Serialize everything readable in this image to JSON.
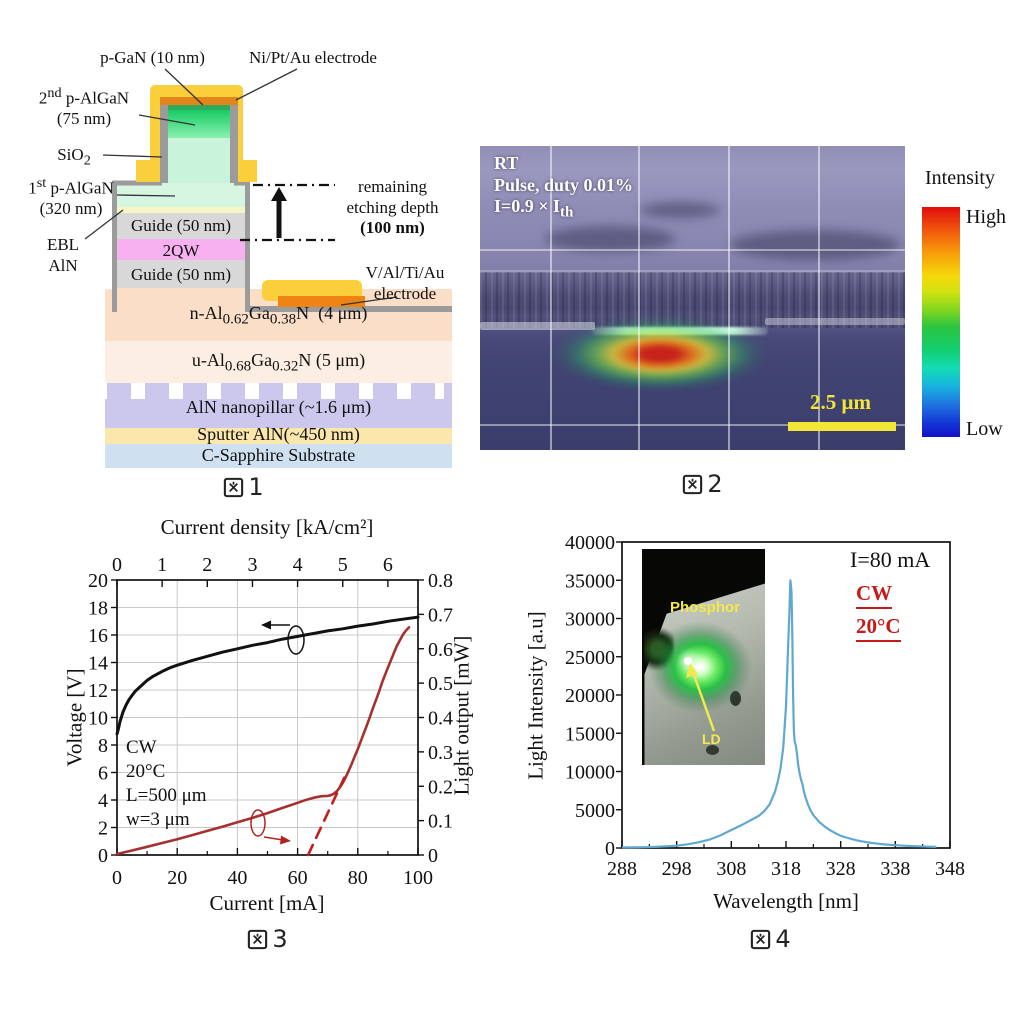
{
  "page": {
    "background": "#ffffff"
  },
  "figures": {
    "fig1": {
      "caption": "図1",
      "labels": {
        "p_gan": "p-GaN (10 nm)",
        "electrode_top": "Ni/Pt/Au electrode",
        "p_algan_2nd": "2<sup>nd</sup> p-AlGaN<br>(75 nm)",
        "sio2": "SiO<sub>2</sub>",
        "p_algan_1st": "1<sup>st</sup> p-AlGaN<br>(320 nm)",
        "ebl": "EBL<br>AlN",
        "guide_top": "Guide (50 nm)",
        "qw": "2QW",
        "guide_bottom": "Guide (50 nm)",
        "remaining": "remaining<br>etching depth<br><b>(100 nm)</b>",
        "electrode_side": "V/Al/Ti/Au<br>electrode",
        "n_algan": "n-Al<sub>0.62</sub>Ga<sub>0.38</sub>N&nbsp; (4 μm)",
        "u_algan": "u-Al<sub>0.68</sub>Ga<sub>0.32</sub>N (5 μm)",
        "nanopillar": "AlN nanopillar (~1.6 μm)",
        "sputter": "Sputter AlN(~450 nm)",
        "substrate": "C-Sapphire Substrate"
      },
      "colors": {
        "electrode_au": "#fbce3c",
        "electrode_contact": "#e2851b",
        "p_algan_2nd_top": "#17cb63",
        "p_algan_2nd_bottom": "#8af0b0",
        "ridge_mint": "#c9f3da",
        "sio2_gray": "#9b9b9b",
        "ebl": "#f5f6c8",
        "guide": "#d8d8d8",
        "qw": "#f7b1f1",
        "n_algan": "#fadec8",
        "u_algan": "#fceee2",
        "nanopillar": "#cbc7ed",
        "sputter_aln": "#fbe6ab",
        "substrate": "#cfe0f1"
      }
    },
    "fig2": {
      "caption": "図2",
      "annotations": {
        "line1": "RT",
        "line2": "Pulse, duty 0.01%",
        "line3": "I=0.9 × I<sub>th</sub>"
      },
      "scale_bar": "2.5 μm",
      "colorbar": {
        "title": "Intensity",
        "high": "High",
        "low": "Low",
        "colors": [
          "#dd0f10",
          "#f59b0c",
          "#f3d90b",
          "#3fc832",
          "#12d8c8",
          "#1563d8",
          "#1018c8"
        ]
      }
    },
    "fig3": {
      "caption": "図3"
    },
    "fig4": {
      "caption": "図4",
      "inset": {
        "phosphor": "Phosphor",
        "ld": "LD"
      }
    }
  },
  "chart_data": [
    {
      "id": "fig3-iv-li-curves",
      "type": "line",
      "caption": "図3",
      "x_axis": {
        "label": "Current [mA]",
        "range": [
          0,
          100
        ],
        "ticks": [
          0,
          20,
          40,
          60,
          80,
          100
        ]
      },
      "x2_axis": {
        "label": "Current density [kA/cm²]",
        "range": [
          0,
          6.667
        ],
        "ticks": [
          0,
          1,
          2,
          3,
          4,
          5,
          6
        ]
      },
      "y_left": {
        "label": "Voltage [V]",
        "range": [
          0,
          20
        ],
        "ticks": [
          0,
          2,
          4,
          6,
          8,
          10,
          12,
          14,
          16,
          18,
          20
        ]
      },
      "y_right": {
        "label": "Light output [mW]",
        "range": [
          0,
          0.8
        ],
        "ticks": [
          "0",
          "0.1",
          "0.2",
          "0.3",
          "0.4",
          "0.5",
          "0.6",
          "0.7",
          "0.8"
        ]
      },
      "annotations": [
        "CW",
        "20°C",
        "L=500 μm",
        "w=3 μm"
      ],
      "grid": true,
      "series": [
        {
          "name": "voltage-vs-current",
          "axis": "left",
          "color": "#111111",
          "width": 3,
          "points": [
            [
              0,
              8.8
            ],
            [
              0.5,
              9.2
            ],
            [
              1,
              9.7
            ],
            [
              2,
              10.4
            ],
            [
              3,
              10.9
            ],
            [
              4,
              11.3
            ],
            [
              5,
              11.6
            ],
            [
              6,
              11.9
            ],
            [
              8,
              12.3
            ],
            [
              10,
              12.7
            ],
            [
              12,
              13.0
            ],
            [
              15,
              13.35
            ],
            [
              18,
              13.65
            ],
            [
              20,
              13.8
            ],
            [
              25,
              14.15
            ],
            [
              30,
              14.45
            ],
            [
              35,
              14.75
            ],
            [
              40,
              15.0
            ],
            [
              45,
              15.25
            ],
            [
              50,
              15.45
            ],
            [
              55,
              15.7
            ],
            [
              60,
              15.9
            ],
            [
              65,
              16.1
            ],
            [
              70,
              16.3
            ],
            [
              75,
              16.45
            ],
            [
              80,
              16.65
            ],
            [
              85,
              16.8
            ],
            [
              90,
              17.0
            ],
            [
              95,
              17.15
            ],
            [
              100,
              17.3
            ]
          ]
        },
        {
          "name": "light-output-vs-current",
          "axis": "right",
          "color": "#a63030",
          "width": 2.6,
          "points": [
            [
              0,
              0.003
            ],
            [
              5,
              0.013
            ],
            [
              10,
              0.024
            ],
            [
              15,
              0.035
            ],
            [
              20,
              0.046
            ],
            [
              25,
              0.058
            ],
            [
              30,
              0.07
            ],
            [
              35,
              0.082
            ],
            [
              40,
              0.095
            ],
            [
              45,
              0.108
            ],
            [
              50,
              0.122
            ],
            [
              55,
              0.137
            ],
            [
              60,
              0.152
            ],
            [
              63,
              0.161
            ],
            [
              66,
              0.168
            ],
            [
              68,
              0.171
            ],
            [
              70,
              0.172
            ],
            [
              71,
              0.174
            ],
            [
              72,
              0.178
            ],
            [
              73,
              0.185
            ],
            [
              74,
              0.196
            ],
            [
              75,
              0.21
            ],
            [
              76,
              0.227
            ],
            [
              77,
              0.246
            ],
            [
              78,
              0.266
            ],
            [
              79,
              0.287
            ],
            [
              80,
              0.308
            ],
            [
              81,
              0.331
            ],
            [
              82,
              0.354
            ],
            [
              83,
              0.377
            ],
            [
              84,
              0.401
            ],
            [
              85,
              0.427
            ],
            [
              86,
              0.45
            ],
            [
              87,
              0.474
            ],
            [
              88,
              0.5
            ],
            [
              89,
              0.523
            ],
            [
              90,
              0.545
            ],
            [
              91,
              0.566
            ],
            [
              92,
              0.588
            ],
            [
              93,
              0.609
            ],
            [
              94,
              0.625
            ],
            [
              95,
              0.641
            ],
            [
              96,
              0.653
            ],
            [
              97,
              0.662
            ]
          ]
        },
        {
          "name": "threshold-extrapolation",
          "axis": "right",
          "color": "#c41b1b",
          "width": 2.6,
          "dashed": true,
          "points": [
            [
              63.5,
              0
            ],
            [
              75.5,
              0.225
            ]
          ]
        }
      ]
    },
    {
      "id": "fig4-lasing-spectrum",
      "type": "line",
      "caption": "図4",
      "x_axis": {
        "label": "Wavelength  [nm]",
        "range": [
          288,
          348
        ],
        "ticks": [
          288,
          298,
          308,
          318,
          328,
          338,
          348
        ]
      },
      "y_axis": {
        "label": "Light Intensity  [a.u]",
        "range": [
          0,
          40000
        ],
        "ticks": [
          0,
          5000,
          10000,
          15000,
          20000,
          25000,
          30000,
          35000,
          40000
        ]
      },
      "annotations": [
        "I=80 mA",
        "CW",
        "20°C"
      ],
      "peak": {
        "wavelength_nm": 319,
        "intensity": 35000
      },
      "grid": false,
      "series": [
        {
          "name": "emission-spectrum",
          "color": "#5fa8d0",
          "width": 2.2,
          "points": [
            [
              288,
              60
            ],
            [
              290,
              80
            ],
            [
              292,
              110
            ],
            [
              294,
              150
            ],
            [
              296,
              210
            ],
            [
              298,
              300
            ],
            [
              300,
              480
            ],
            [
              302,
              750
            ],
            [
              304,
              1100
            ],
            [
              306,
              1650
            ],
            [
              308,
              2350
            ],
            [
              310,
              3050
            ],
            [
              312,
              3800
            ],
            [
              313,
              4200
            ],
            [
              314,
              4800
            ],
            [
              315,
              5700
            ],
            [
              316,
              7400
            ],
            [
              316.5,
              8700
            ],
            [
              317,
              10400
            ],
            [
              317.5,
              13200
            ],
            [
              318,
              18500
            ],
            [
              318.3,
              24500
            ],
            [
              318.6,
              30500
            ],
            [
              318.8,
              35000
            ],
            [
              319,
              33500
            ],
            [
              319.15,
              28000
            ],
            [
              319.3,
              20000
            ],
            [
              319.45,
              15200
            ],
            [
              319.6,
              13900
            ],
            [
              319.8,
              13400
            ],
            [
              320,
              12400
            ],
            [
              320.2,
              11000
            ],
            [
              320.5,
              9700
            ],
            [
              320.8,
              8800
            ],
            [
              321,
              8400
            ],
            [
              321.2,
              7600
            ],
            [
              321.5,
              6800
            ],
            [
              322,
              5700
            ],
            [
              322.5,
              4900
            ],
            [
              323,
              4300
            ],
            [
              324,
              3450
            ],
            [
              325,
              2850
            ],
            [
              326,
              2350
            ],
            [
              327,
              1950
            ],
            [
              328,
              1600
            ],
            [
              329,
              1370
            ],
            [
              330,
              1170
            ],
            [
              331,
              1000
            ],
            [
              332,
              860
            ],
            [
              333,
              730
            ],
            [
              334,
              630
            ],
            [
              335,
              545
            ],
            [
              336,
              470
            ],
            [
              338,
              360
            ],
            [
              340,
              285
            ],
            [
              342,
              225
            ],
            [
              344,
              175
            ],
            [
              345.5,
              150
            ]
          ]
        }
      ]
    }
  ]
}
